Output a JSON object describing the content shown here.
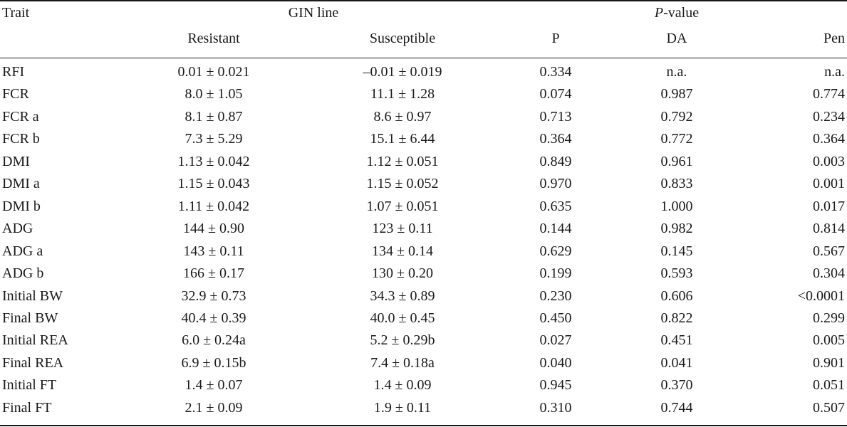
{
  "header": {
    "trait": "Trait",
    "gin_line": "GIN line",
    "pvalue_italic": "P",
    "pvalue_rest": "-value",
    "resistant": "Resistant",
    "susceptible": "Susceptible",
    "p": "P",
    "da": "DA",
    "pen": "Pen"
  },
  "rows": [
    {
      "trait": "RFI",
      "resistant": "0.01 ± 0.021",
      "susceptible": "–0.01 ± 0.019",
      "p": "0.334",
      "da": "n.a.",
      "pen": "n.a."
    },
    {
      "trait": "FCR",
      "resistant": "8.0 ± 1.05",
      "susceptible": "11.1 ± 1.28",
      "p": "0.074",
      "da": "0.987",
      "pen": "0.774"
    },
    {
      "trait": "FCR a",
      "resistant": "8.1 ± 0.87",
      "susceptible": "8.6 ± 0.97",
      "p": "0.713",
      "da": "0.792",
      "pen": "0.234"
    },
    {
      "trait": "FCR b",
      "resistant": "7.3 ± 5.29",
      "susceptible": "15.1 ± 6.44",
      "p": "0.364",
      "da": "0.772",
      "pen": "0.364"
    },
    {
      "trait": "DMI",
      "resistant": "1.13 ± 0.042",
      "susceptible": "1.12 ± 0.051",
      "p": "0.849",
      "da": "0.961",
      "pen": "0.003"
    },
    {
      "trait": "DMI a",
      "resistant": "1.15 ± 0.043",
      "susceptible": "1.15 ± 0.052",
      "p": "0.970",
      "da": "0.833",
      "pen": "0.001"
    },
    {
      "trait": "DMI b",
      "resistant": "1.11 ± 0.042",
      "susceptible": "1.07 ± 0.051",
      "p": "0.635",
      "da": "1.000",
      "pen": "0.017"
    },
    {
      "trait": "ADG",
      "resistant": "144 ± 0.90",
      "susceptible": "123 ± 0.11",
      "p": "0.144",
      "da": "0.982",
      "pen": "0.814"
    },
    {
      "trait": "ADG a",
      "resistant": "143 ± 0.11",
      "susceptible": "134 ± 0.14",
      "p": "0.629",
      "da": "0.145",
      "pen": "0.567"
    },
    {
      "trait": "ADG b",
      "resistant": "166 ± 0.17",
      "susceptible": "130 ± 0.20",
      "p": "0.199",
      "da": "0.593",
      "pen": "0.304"
    },
    {
      "trait": "Initial BW",
      "resistant": "32.9 ± 0.73",
      "susceptible": "34.3 ± 0.89",
      "p": "0.230",
      "da": "0.606",
      "pen": "<0.0001"
    },
    {
      "trait": "Final BW",
      "resistant": "40.4 ± 0.39",
      "susceptible": "40.0 ± 0.45",
      "p": "0.450",
      "da": "0.822",
      "pen": "0.299"
    },
    {
      "trait": "Initial REA",
      "resistant": "6.0 ± 0.24a",
      "susceptible": "5.2 ± 0.29b",
      "p": "0.027",
      "da": "0.451",
      "pen": "0.005"
    },
    {
      "trait": "Final REA",
      "resistant": "6.9 ± 0.15b",
      "susceptible": "7.4 ± 0.18a",
      "p": "0.040",
      "da": "0.041",
      "pen": "0.901"
    },
    {
      "trait": "Initial FT",
      "resistant": "1.4 ± 0.07",
      "susceptible": "1.4 ± 0.09",
      "p": "0.945",
      "da": "0.370",
      "pen": "0.051"
    },
    {
      "trait": "Final FT",
      "resistant": "2.1 ± 0.09",
      "susceptible": "1.9 ± 0.11",
      "p": "0.310",
      "da": "0.744",
      "pen": "0.507"
    }
  ]
}
